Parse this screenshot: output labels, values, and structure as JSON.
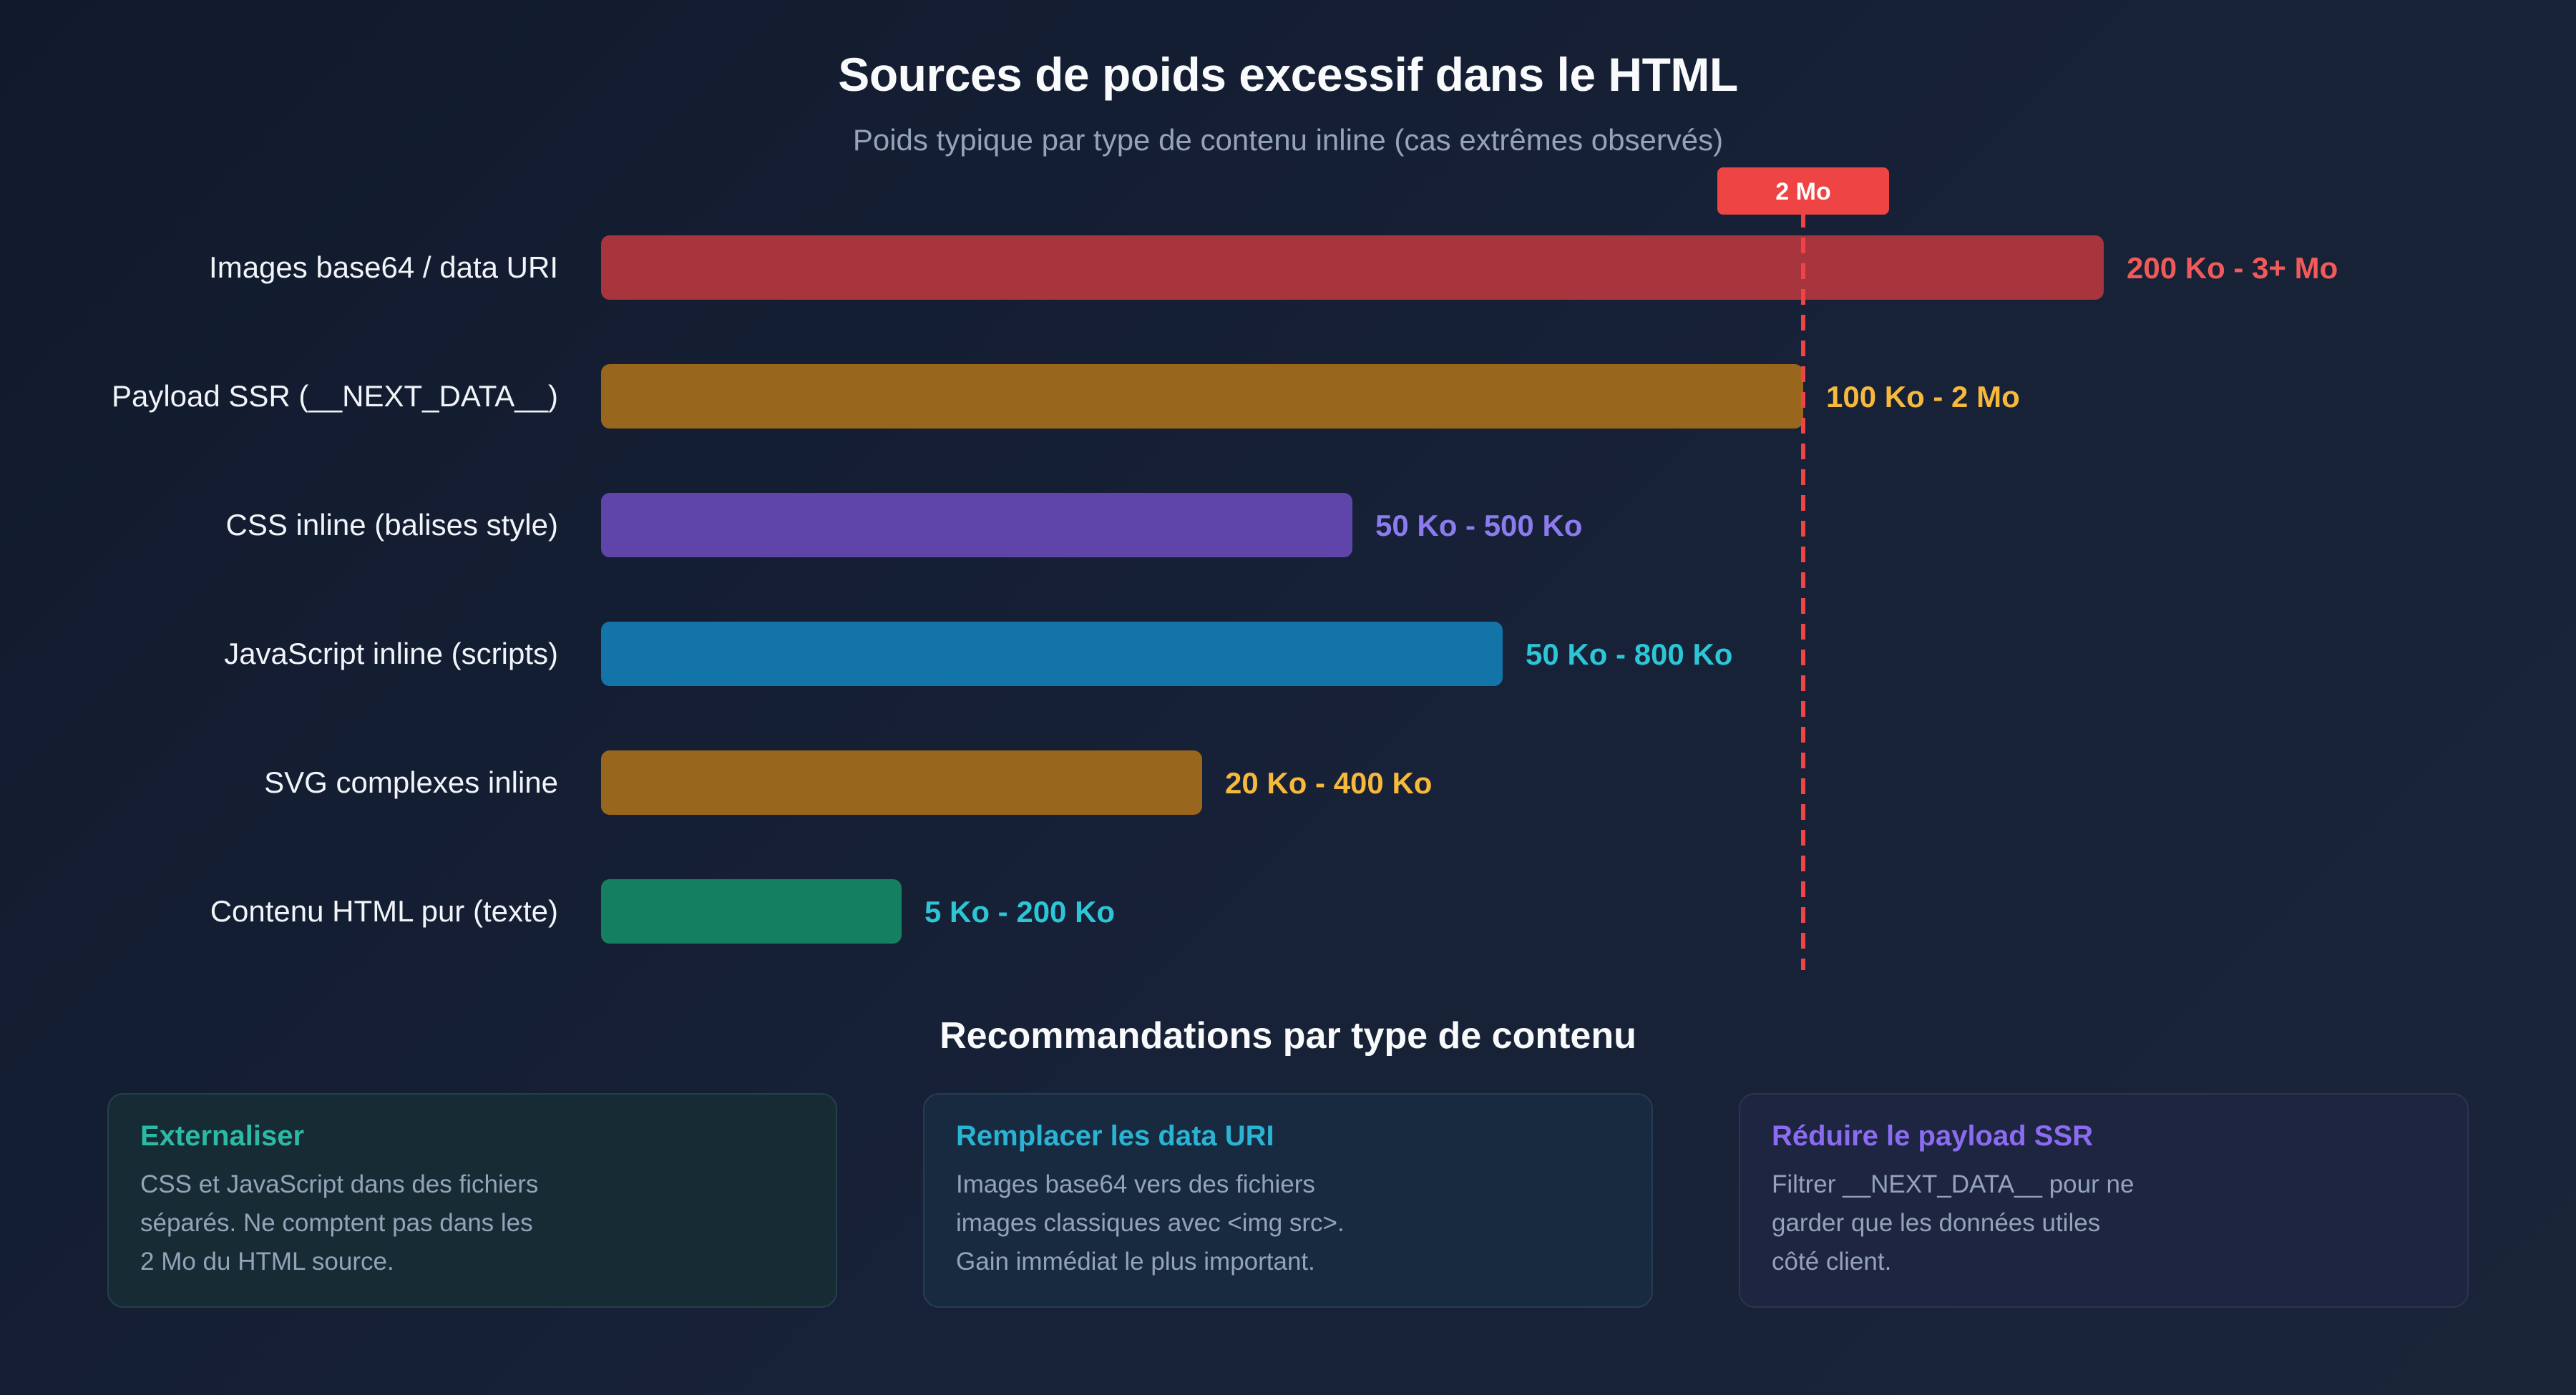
{
  "header": {
    "title": "Sources de poids excessif dans le HTML",
    "subtitle": "Poids typique par type de contenu inline (cas extrêmes observés)"
  },
  "chart_data": {
    "type": "bar",
    "orientation": "horizontal",
    "unit": "Ko",
    "categories": [
      "Images base64 / data URI",
      "Payload SSR (__NEXT_DATA__)",
      "CSS inline (balises style)",
      "JavaScript inline (scripts)",
      "SVG complexes inline",
      "Contenu HTML pur (texte)"
    ],
    "series": [
      {
        "values": [
          2500,
          2000,
          1250,
          1500,
          1000,
          500
        ],
        "labels": [
          "200 Ko - 3+ Mo",
          "100 Ko - 2 Mo",
          "50 Ko - 500 Ko",
          "50 Ko - 800 Ko",
          "20 Ko - 400 Ko",
          "5 Ko - 200 Ko"
        ],
        "bar_colors": [
          "#a8343e",
          "#98661c",
          "#5f45a9",
          "#1374a8",
          "#98661c",
          "#14805f"
        ],
        "label_colors": [
          "#f05a5a",
          "#f6b93b",
          "#8b7bef",
          "#2cc6d6",
          "#f6b93b",
          "#2cc6d6"
        ]
      }
    ],
    "xlim": [
      0,
      2500
    ],
    "threshold": {
      "value": 2000,
      "label": "2 Mo",
      "color": "#ef4444"
    },
    "grid": false,
    "legend": "none"
  },
  "recommendations": {
    "title": "Recommandations par type de contenu",
    "cards": [
      {
        "heading": "Externaliser",
        "heading_color": "#2cb9a6",
        "lines": [
          "CSS et JavaScript dans des fichiers",
          "séparés. Ne comptent pas dans les",
          "2 Mo du HTML source."
        ]
      },
      {
        "heading": "Remplacer les data URI",
        "heading_color": "#2ab3d2",
        "lines": [
          "Images base64 vers des fichiers",
          "images classiques avec <img src>.",
          "Gain immédiat le plus important."
        ]
      },
      {
        "heading": "Réduire le payload SSR",
        "heading_color": "#8b6cf0",
        "lines": [
          "Filtrer __NEXT_DATA__ pour ne",
          "garder que les données utiles",
          "côté client."
        ]
      }
    ]
  }
}
